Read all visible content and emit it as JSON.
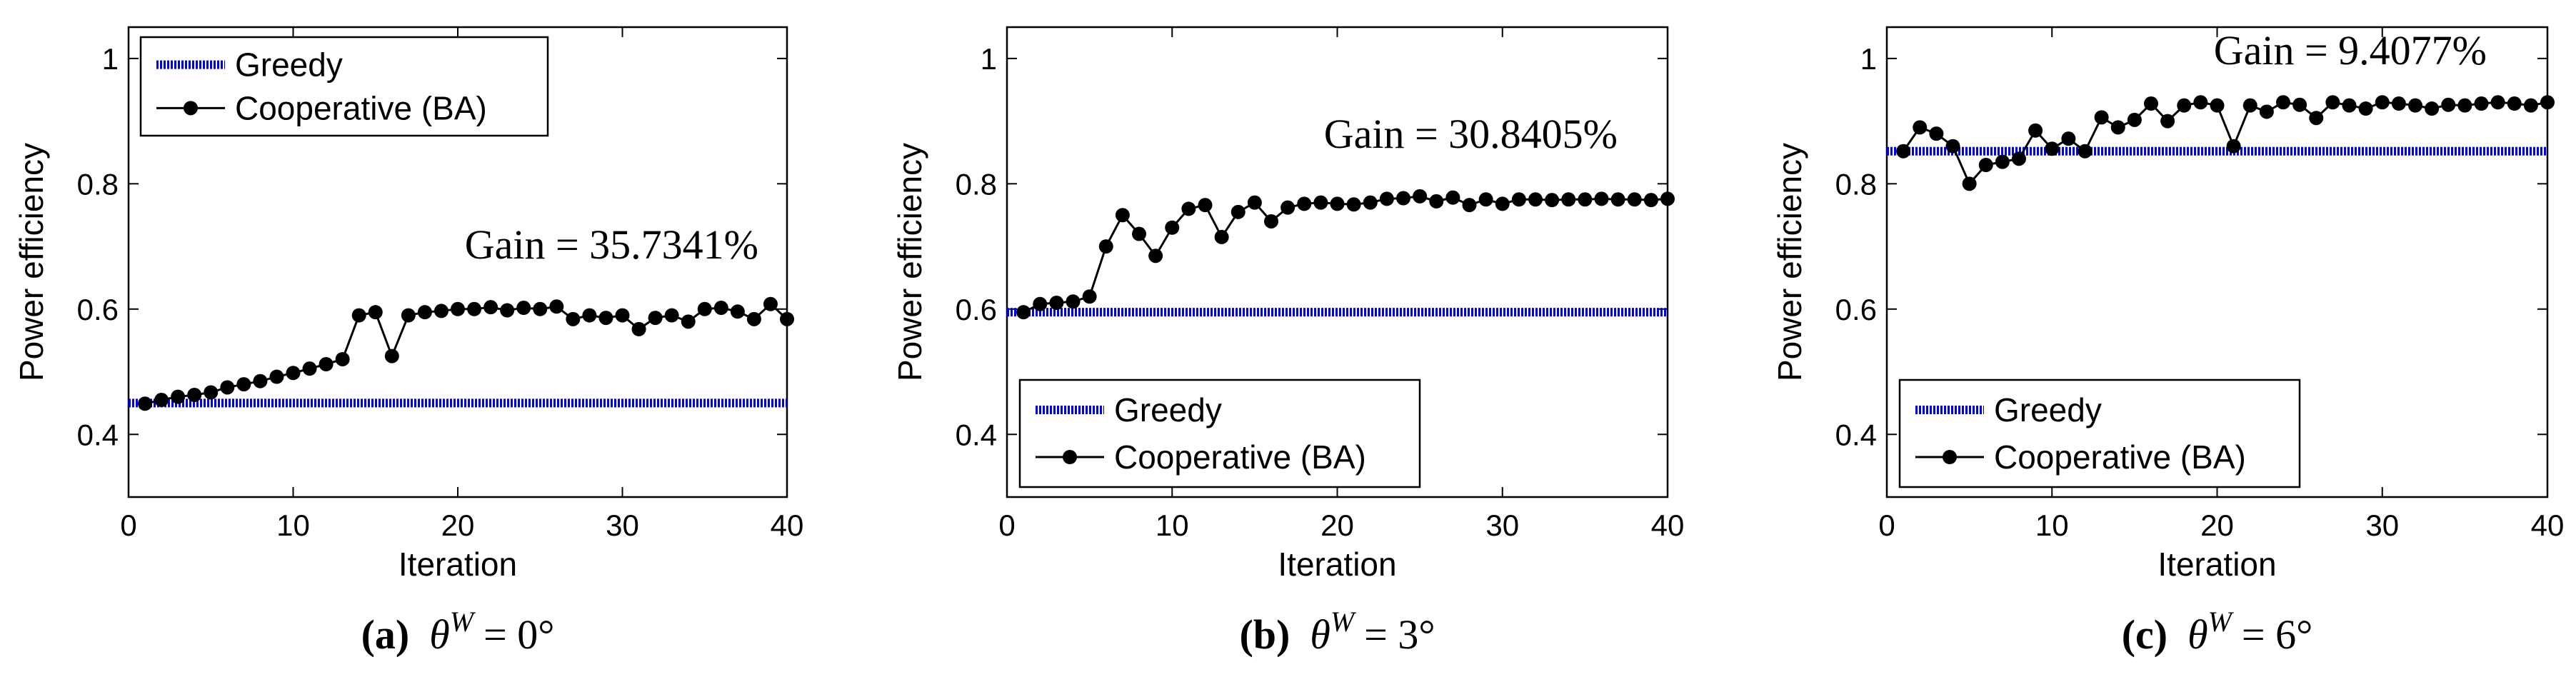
{
  "chart_data": [
    {
      "type": "line",
      "caption": {
        "letter": "a",
        "symbol": "θ",
        "superscript": "W",
        "value": "0°"
      },
      "annotation": "Gain = 35.7341%",
      "xlabel": "Iteration",
      "ylabel": "Power efficiency",
      "xlim": [
        0,
        40
      ],
      "ylim": [
        0.3,
        1.05
      ],
      "xticks": [
        "0",
        "10",
        "20",
        "30",
        "40"
      ],
      "yticks": [
        "0.4",
        "0.6",
        "0.8",
        "1"
      ],
      "legend_position": "top-left",
      "series": [
        {
          "name": "Greedy",
          "color": "#0000ee",
          "style": "dotted-thick",
          "x": [
            0,
            40
          ],
          "y": [
            0.45,
            0.45
          ]
        },
        {
          "name": "Cooperative (BA)",
          "color": "#000000",
          "style": "line-markers",
          "x": [
            1,
            2,
            3,
            4,
            5,
            6,
            7,
            8,
            9,
            10,
            11,
            12,
            13,
            14,
            15,
            16,
            17,
            18,
            19,
            20,
            21,
            22,
            23,
            24,
            25,
            26,
            27,
            28,
            29,
            30,
            31,
            32,
            33,
            34,
            35,
            36,
            37,
            38,
            39,
            40
          ],
          "y": [
            0.449,
            0.455,
            0.46,
            0.463,
            0.467,
            0.475,
            0.48,
            0.485,
            0.492,
            0.498,
            0.505,
            0.512,
            0.52,
            0.59,
            0.595,
            0.525,
            0.59,
            0.595,
            0.597,
            0.6,
            0.6,
            0.603,
            0.598,
            0.602,
            0.6,
            0.604,
            0.584,
            0.59,
            0.586,
            0.59,
            0.568,
            0.586,
            0.59,
            0.58,
            0.6,
            0.602,
            0.596,
            0.584,
            0.608,
            0.584
          ]
        }
      ]
    },
    {
      "type": "line",
      "caption": {
        "letter": "b",
        "symbol": "θ",
        "superscript": "W",
        "value": "3°"
      },
      "annotation": "Gain = 30.8405%",
      "xlabel": "Iteration",
      "ylabel": "Power efficiency",
      "xlim": [
        0,
        40
      ],
      "ylim": [
        0.3,
        1.05
      ],
      "xticks": [
        "0",
        "10",
        "20",
        "30",
        "40"
      ],
      "yticks": [
        "0.4",
        "0.6",
        "0.8",
        "1"
      ],
      "legend_position": "bottom-left",
      "series": [
        {
          "name": "Greedy",
          "color": "#0000ee",
          "style": "dotted-thick",
          "x": [
            0,
            40
          ],
          "y": [
            0.595,
            0.595
          ]
        },
        {
          "name": "Cooperative (BA)",
          "color": "#000000",
          "style": "line-markers",
          "x": [
            1,
            2,
            3,
            4,
            5,
            6,
            7,
            8,
            9,
            10,
            11,
            12,
            13,
            14,
            15,
            16,
            17,
            18,
            19,
            20,
            21,
            22,
            23,
            24,
            25,
            26,
            27,
            28,
            29,
            30,
            31,
            32,
            33,
            34,
            35,
            36,
            37,
            38,
            39,
            40
          ],
          "y": [
            0.595,
            0.608,
            0.61,
            0.612,
            0.62,
            0.7,
            0.75,
            0.72,
            0.685,
            0.73,
            0.76,
            0.766,
            0.715,
            0.755,
            0.77,
            0.74,
            0.762,
            0.768,
            0.77,
            0.768,
            0.767,
            0.77,
            0.776,
            0.777,
            0.78,
            0.772,
            0.778,
            0.766,
            0.775,
            0.768,
            0.775,
            0.775,
            0.774,
            0.775,
            0.775,
            0.776,
            0.775,
            0.775,
            0.774,
            0.776
          ]
        }
      ]
    },
    {
      "type": "line",
      "caption": {
        "letter": "c",
        "symbol": "θ",
        "superscript": "W",
        "value": "6°"
      },
      "annotation": "Gain = 9.4077%",
      "xlabel": "Iteration",
      "ylabel": "Power efficiency",
      "xlim": [
        0,
        40
      ],
      "ylim": [
        0.3,
        1.05
      ],
      "xticks": [
        "0",
        "10",
        "20",
        "30",
        "40"
      ],
      "yticks": [
        "0.4",
        "0.6",
        "0.8",
        "1"
      ],
      "legend_position": "bottom-left",
      "series": [
        {
          "name": "Greedy",
          "color": "#0000ee",
          "style": "dotted-thick",
          "x": [
            0,
            40
          ],
          "y": [
            0.852,
            0.852
          ]
        },
        {
          "name": "Cooperative (BA)",
          "color": "#000000",
          "style": "line-markers",
          "x": [
            1,
            2,
            3,
            4,
            5,
            6,
            7,
            8,
            9,
            10,
            11,
            12,
            13,
            14,
            15,
            16,
            17,
            18,
            19,
            20,
            21,
            22,
            23,
            24,
            25,
            26,
            27,
            28,
            29,
            30,
            31,
            32,
            33,
            34,
            35,
            36,
            37,
            38,
            39,
            40
          ],
          "y": [
            0.852,
            0.89,
            0.88,
            0.86,
            0.8,
            0.83,
            0.835,
            0.84,
            0.885,
            0.856,
            0.872,
            0.852,
            0.906,
            0.89,
            0.902,
            0.928,
            0.9,
            0.925,
            0.93,
            0.925,
            0.86,
            0.925,
            0.915,
            0.93,
            0.926,
            0.905,
            0.93,
            0.925,
            0.92,
            0.93,
            0.928,
            0.925,
            0.92,
            0.926,
            0.925,
            0.928,
            0.93,
            0.928,
            0.925,
            0.93
          ]
        }
      ]
    }
  ]
}
